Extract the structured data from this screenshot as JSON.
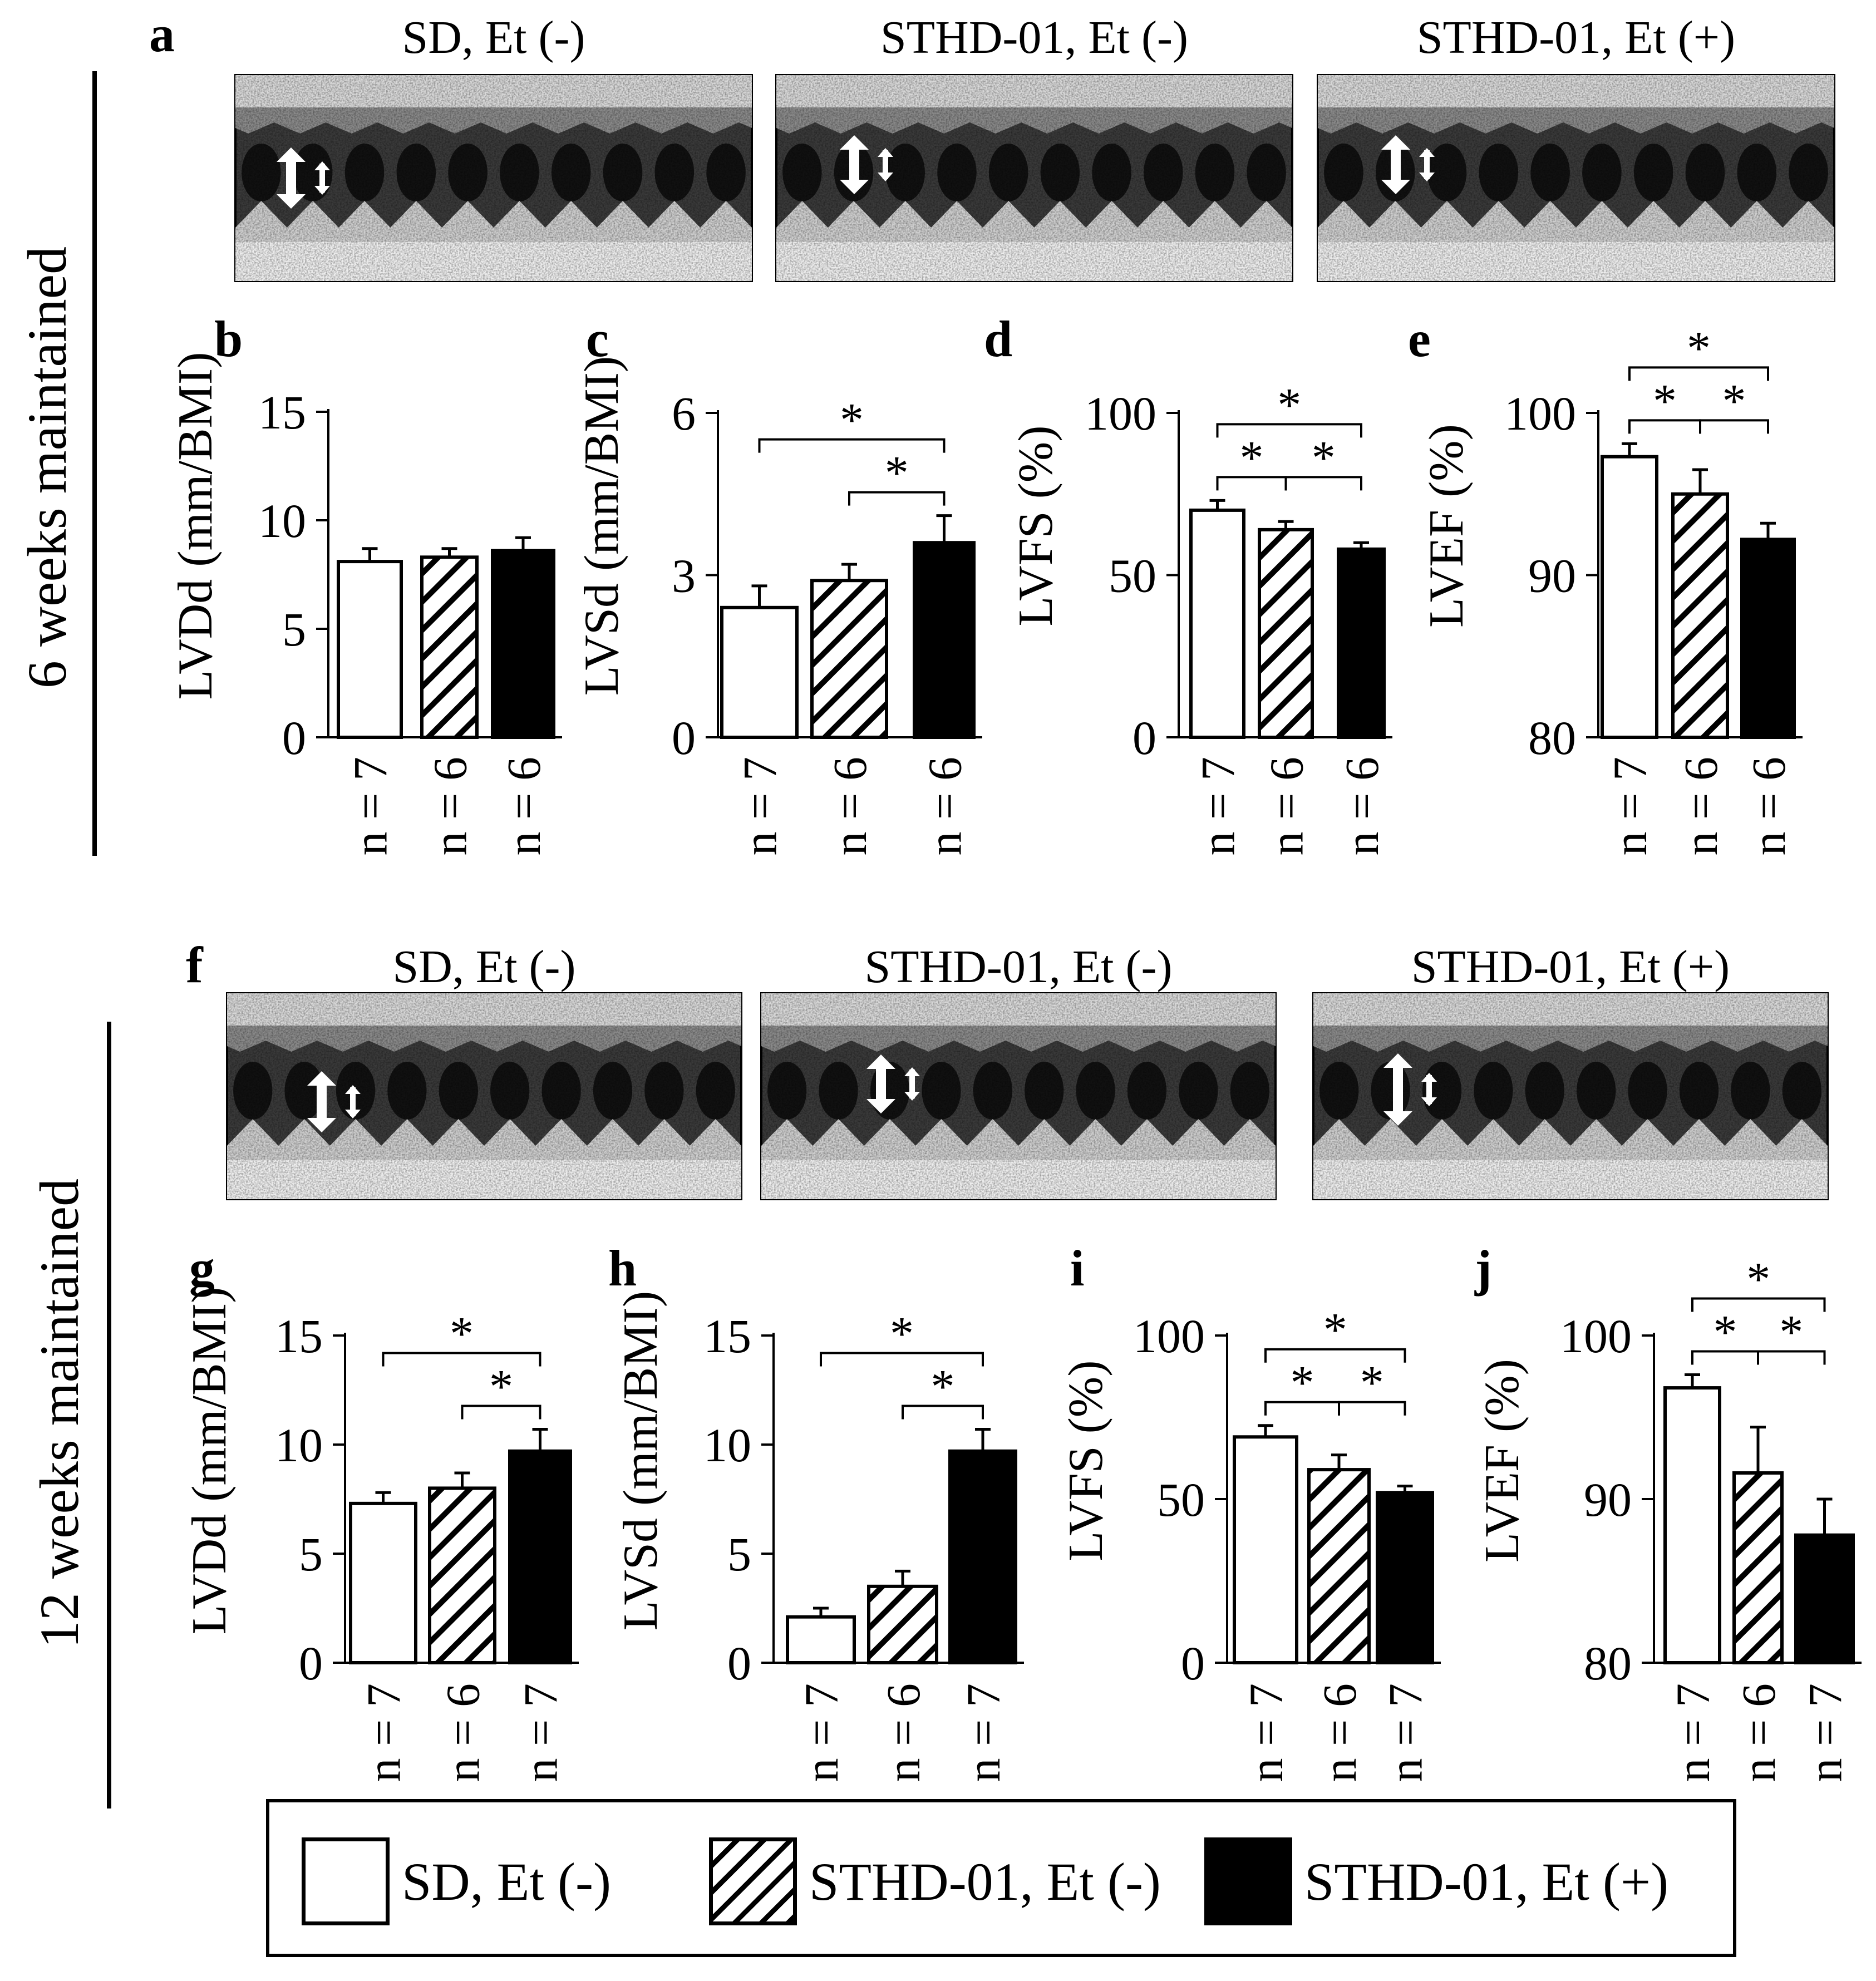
{
  "row_labels": [
    "6 weeks maintained",
    "12 weeks maintained"
  ],
  "echo_panels": [
    {
      "letter": "a",
      "titles": [
        "SD, Et (-)",
        "STHD-01, Et (-)",
        "STHD-01, Et (+)"
      ]
    },
    {
      "letter": "f",
      "titles": [
        "SD, Et (-)",
        "STHD-01, Et (-)",
        "STHD-01, Et (+)"
      ]
    }
  ],
  "legend": [
    {
      "label": "SD, Et (-)",
      "style": "white"
    },
    {
      "label": "STHD-01, Et (-)",
      "style": "hatched"
    },
    {
      "label": "STHD-01, Et (+)",
      "style": "black"
    }
  ],
  "colors": {
    "bar_edge": "#000000",
    "bar_black": "#000000",
    "bar_white": "#ffffff"
  },
  "chart_data": [
    {
      "letter": "b",
      "type": "bar",
      "ylabel": "LVDd (mm/BMI)",
      "ylim": [
        0,
        15
      ],
      "yticks": [
        0,
        5,
        10,
        15
      ],
      "values": [
        8.1,
        8.3,
        8.6
      ],
      "errors": [
        0.6,
        0.4,
        0.6
      ],
      "n_labels": [
        "n = 7",
        "n = 6",
        "n = 6"
      ],
      "significance": []
    },
    {
      "letter": "c",
      "type": "bar",
      "ylabel": "LVSd (mm/BMI)",
      "ylim": [
        0,
        6
      ],
      "yticks": [
        0,
        3,
        6
      ],
      "values": [
        2.4,
        2.9,
        3.6
      ],
      "errors": [
        0.4,
        0.3,
        0.5
      ],
      "n_labels": [
        "n = 7",
        "n = 6",
        "n = 6"
      ],
      "significance": [
        {
          "from": 0,
          "to": 2,
          "level": 2,
          "mark": "*"
        },
        {
          "from": 1,
          "to": 2,
          "level": 1,
          "mark": "*"
        }
      ]
    },
    {
      "letter": "d",
      "type": "bar",
      "ylabel": "LVFS (%)",
      "ylim": [
        0,
        100
      ],
      "yticks": [
        0,
        50,
        100
      ],
      "values": [
        70,
        64,
        58
      ],
      "errors": [
        3,
        2.5,
        2
      ],
      "n_labels": [
        "n = 7",
        "n = 6",
        "n = 6"
      ],
      "significance": [
        {
          "from": 0,
          "to": 1,
          "level": 1,
          "mark": "*"
        },
        {
          "from": 1,
          "to": 2,
          "level": 1,
          "mark": "*"
        },
        {
          "from": 0,
          "to": 2,
          "level": 2,
          "mark": "*"
        }
      ]
    },
    {
      "letter": "e",
      "type": "bar",
      "ylabel": "LVEF (%)",
      "ylim": [
        80,
        100
      ],
      "yticks": [
        80,
        90,
        100
      ],
      "values": [
        97.3,
        95.0,
        92.2
      ],
      "errors": [
        0.8,
        1.5,
        1.0
      ],
      "n_labels": [
        "n = 7",
        "n = 6",
        "n = 6"
      ],
      "significance": [
        {
          "from": 0,
          "to": 1,
          "level": 1,
          "mark": "*"
        },
        {
          "from": 1,
          "to": 2,
          "level": 1,
          "mark": "*"
        },
        {
          "from": 0,
          "to": 2,
          "level": 2,
          "mark": "*"
        }
      ]
    },
    {
      "letter": "g",
      "type": "bar",
      "ylabel": "LVDd (mm/BMI)",
      "ylim": [
        0,
        15
      ],
      "yticks": [
        0,
        5,
        10,
        15
      ],
      "values": [
        7.3,
        8.0,
        9.7
      ],
      "errors": [
        0.5,
        0.7,
        1.0
      ],
      "n_labels": [
        "n = 7",
        "n = 6",
        "n = 7"
      ],
      "significance": [
        {
          "from": 0,
          "to": 2,
          "level": 2,
          "mark": "*"
        },
        {
          "from": 1,
          "to": 2,
          "level": 1,
          "mark": "*"
        }
      ]
    },
    {
      "letter": "h",
      "type": "bar",
      "ylabel": "LVSd (mm/BMI)",
      "ylim": [
        0,
        15
      ],
      "yticks": [
        0,
        5,
        10,
        15
      ],
      "values": [
        2.1,
        3.5,
        9.7
      ],
      "errors": [
        0.4,
        0.7,
        1.0
      ],
      "n_labels": [
        "n = 7",
        "n = 6",
        "n = 7"
      ],
      "significance": [
        {
          "from": 0,
          "to": 2,
          "level": 2,
          "mark": "*"
        },
        {
          "from": 1,
          "to": 2,
          "level": 1,
          "mark": "*"
        }
      ]
    },
    {
      "letter": "i",
      "type": "bar",
      "ylabel": "LVFS (%)",
      "ylim": [
        0,
        100
      ],
      "yticks": [
        0,
        50,
        100
      ],
      "values": [
        69,
        59,
        52
      ],
      "errors": [
        3.5,
        4.5,
        2
      ],
      "n_labels": [
        "n = 7",
        "n = 6",
        "n = 7"
      ],
      "significance": [
        {
          "from": 0,
          "to": 1,
          "level": 1,
          "mark": "*"
        },
        {
          "from": 1,
          "to": 2,
          "level": 1,
          "mark": "*"
        },
        {
          "from": 0,
          "to": 2,
          "level": 2,
          "mark": "*"
        }
      ]
    },
    {
      "letter": "j",
      "type": "bar",
      "ylabel": "LVEF (%)",
      "ylim": [
        80,
        100
      ],
      "yticks": [
        80,
        90,
        100
      ],
      "values": [
        96.8,
        91.6,
        87.8
      ],
      "errors": [
        0.8,
        2.8,
        2.2
      ],
      "n_labels": [
        "n = 7",
        "n = 6",
        "n = 7"
      ],
      "significance": [
        {
          "from": 0,
          "to": 1,
          "level": 1,
          "mark": "*"
        },
        {
          "from": 1,
          "to": 2,
          "level": 1,
          "mark": "*"
        },
        {
          "from": 0,
          "to": 2,
          "level": 2,
          "mark": "*"
        }
      ]
    }
  ]
}
